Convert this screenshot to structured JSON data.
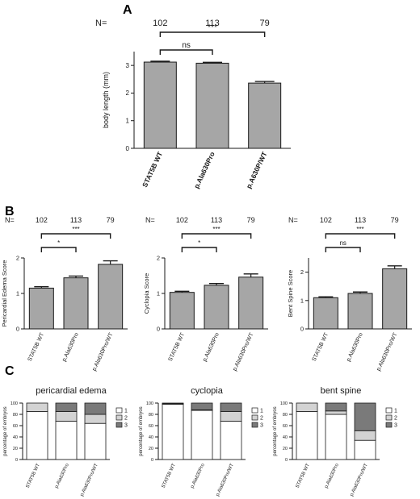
{
  "panels": {
    "A": "A",
    "B": "B",
    "C": "C"
  },
  "n_label": "N=",
  "n_values": [
    "102",
    "113",
    "79"
  ],
  "colors": {
    "bar": "#a6a6a6",
    "stack1": "#ffffff",
    "stack2": "#d3d3d3",
    "stack3": "#7a7a7a",
    "ink": "#1a1a1a"
  },
  "chart_data": [
    {
      "id": "A",
      "type": "bar",
      "categories": [
        "STAT5B WT",
        "p.Ala630Pro",
        "p.A630P/WT"
      ],
      "values": [
        3.12,
        3.08,
        2.36
      ],
      "error": [
        0.03,
        0.03,
        0.06
      ],
      "ylabel": "body length (mm)",
      "ylim": [
        0,
        3.5
      ],
      "yticks": [
        "0",
        "1",
        "2",
        "3"
      ],
      "brackets": [
        {
          "from": 0,
          "to": 1,
          "label": "ns"
        },
        {
          "from": 0,
          "to": 2,
          "label": "***"
        }
      ]
    },
    {
      "id": "B1",
      "type": "bar",
      "categories": [
        "STAT5B WT",
        "p.Ala630Pro",
        "p.Ala630Pro/WT"
      ],
      "values": [
        1.15,
        1.44,
        1.82
      ],
      "error": [
        0.04,
        0.05,
        0.1
      ],
      "ylabel": "Pericardial Edema Score",
      "ylim": [
        0,
        2
      ],
      "yticks": [
        "0",
        "1",
        "2"
      ],
      "brackets": [
        {
          "from": 0,
          "to": 1,
          "label": "*"
        },
        {
          "from": 0,
          "to": 2,
          "label": "***"
        }
      ]
    },
    {
      "id": "B2",
      "type": "bar",
      "categories": [
        "STAT5B WT",
        "p.Ala630Pro",
        "p.Ala630Pro/WT"
      ],
      "values": [
        1.03,
        1.23,
        1.46
      ],
      "error": [
        0.03,
        0.05,
        0.09
      ],
      "ylabel": "Cyclopia Score",
      "ylim": [
        0,
        2
      ],
      "yticks": [
        "0",
        "1",
        "2"
      ],
      "brackets": [
        {
          "from": 0,
          "to": 1,
          "label": "*"
        },
        {
          "from": 0,
          "to": 2,
          "label": "***"
        }
      ]
    },
    {
      "id": "B3",
      "type": "bar",
      "categories": [
        "STAT5B WT",
        "p.Ala630Pro",
        "p.Ala630Pro/WT"
      ],
      "values": [
        1.1,
        1.25,
        2.12
      ],
      "error": [
        0.03,
        0.05,
        0.1
      ],
      "ylabel": "Bent Spine Score",
      "ylim": [
        0,
        2.5
      ],
      "yticks": [
        "0",
        "1",
        "2"
      ],
      "brackets": [
        {
          "from": 0,
          "to": 1,
          "label": "ns"
        },
        {
          "from": 0,
          "to": 2,
          "label": "***"
        }
      ]
    },
    {
      "id": "C1",
      "type": "bar",
      "stacked": true,
      "title": "pericardial edema",
      "categories": [
        "STAT5B WT",
        "p.Ala630Pro",
        "p.Ala630Pro/WT"
      ],
      "series": [
        {
          "name": "1",
          "values": [
            85,
            68,
            64
          ]
        },
        {
          "name": "2",
          "values": [
            15,
            17,
            16
          ]
        },
        {
          "name": "3",
          "values": [
            0,
            15,
            20
          ]
        }
      ],
      "ylabel": "percentage of embryos",
      "ylim": [
        0,
        100
      ],
      "yticks": [
        "0",
        "20",
        "40",
        "60",
        "80",
        "100"
      ],
      "legend": "right"
    },
    {
      "id": "C2",
      "type": "bar",
      "stacked": true,
      "title": "cyclopia",
      "categories": [
        "STAT5B WT",
        "p.Ala630Pro",
        "p.Ala630Pro/WT"
      ],
      "series": [
        {
          "name": "1",
          "values": [
            98,
            87,
            68
          ]
        },
        {
          "name": "2",
          "values": [
            1,
            1,
            17
          ]
        },
        {
          "name": "3",
          "values": [
            1,
            12,
            15
          ]
        }
      ],
      "ylabel": "percentage of embryos",
      "ylim": [
        0,
        100
      ],
      "yticks": [
        "0",
        "20",
        "40",
        "60",
        "80",
        "100"
      ],
      "legend": "right"
    },
    {
      "id": "C3",
      "type": "bar",
      "stacked": true,
      "title": "bent spine",
      "categories": [
        "STAT5B WT",
        "p.Ala630Pro",
        "p.Ala630Pro/WT"
      ],
      "series": [
        {
          "name": "1",
          "values": [
            85,
            80,
            34
          ]
        },
        {
          "name": "2",
          "values": [
            15,
            6,
            17
          ]
        },
        {
          "name": "3",
          "values": [
            0,
            14,
            49
          ]
        }
      ],
      "ylabel": "percentage of embryos",
      "ylim": [
        0,
        100
      ],
      "yticks": [
        "0",
        "20",
        "40",
        "60",
        "80",
        "100"
      ],
      "legend": "right"
    }
  ]
}
